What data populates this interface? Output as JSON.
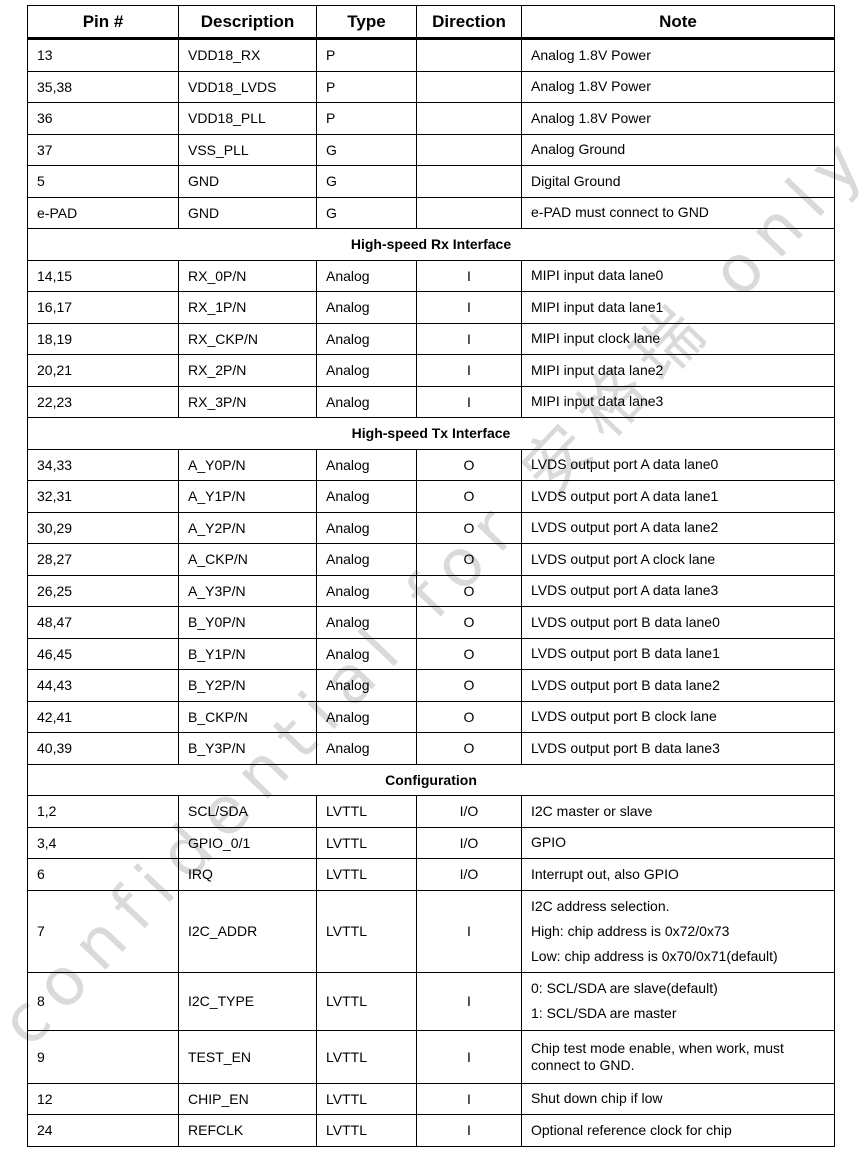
{
  "headers": [
    "Pin #",
    "Description",
    "Type",
    "Direction",
    "Note"
  ],
  "rows": [
    {
      "pin": "13",
      "desc": "VDD18_RX",
      "type": "P",
      "dir": "",
      "note": [
        "Analog 1.8V Power"
      ]
    },
    {
      "pin": "35,38",
      "desc": "VDD18_LVDS",
      "type": "P",
      "dir": "",
      "note": [
        "Analog 1.8V Power"
      ]
    },
    {
      "pin": "36",
      "desc": "VDD18_PLL",
      "type": "P",
      "dir": "",
      "note": [
        "Analog 1.8V Power"
      ]
    },
    {
      "pin": "37",
      "desc": "VSS_PLL",
      "type": "G",
      "dir": "",
      "note": [
        "Analog Ground"
      ]
    },
    {
      "pin": "5",
      "desc": "GND",
      "type": "G",
      "dir": "",
      "note": [
        "Digital Ground"
      ]
    },
    {
      "pin": "e-PAD",
      "desc": "GND",
      "type": "G",
      "dir": "",
      "note": [
        "e-PAD must connect to GND"
      ]
    },
    {
      "section": "High-speed Rx Interface"
    },
    {
      "pin": "14,15",
      "desc": "RX_0P/N",
      "type": "Analog",
      "dir": "I",
      "note": [
        "MIPI input data lane0"
      ]
    },
    {
      "pin": "16,17",
      "desc": "RX_1P/N",
      "type": "Analog",
      "dir": "I",
      "note": [
        "MIPI input data lane1"
      ]
    },
    {
      "pin": "18,19",
      "desc": "RX_CKP/N",
      "type": "Analog",
      "dir": "I",
      "note": [
        "MIPI input clock lane"
      ]
    },
    {
      "pin": "20,21",
      "desc": "RX_2P/N",
      "type": "Analog",
      "dir": "I",
      "note": [
        "MIPI input data lane2"
      ]
    },
    {
      "pin": "22,23",
      "desc": "RX_3P/N",
      "type": "Analog",
      "dir": "I",
      "note": [
        "MIPI input data lane3"
      ]
    },
    {
      "section": "High-speed Tx Interface"
    },
    {
      "pin": "34,33",
      "desc": "A_Y0P/N",
      "type": "Analog",
      "dir": "O",
      "note": [
        "LVDS output port A data lane0"
      ]
    },
    {
      "pin": "32,31",
      "desc": "A_Y1P/N",
      "type": "Analog",
      "dir": "O",
      "note": [
        "LVDS output port A data lane1"
      ]
    },
    {
      "pin": "30,29",
      "desc": "A_Y2P/N",
      "type": "Analog",
      "dir": "O",
      "note": [
        "LVDS output port A data lane2"
      ]
    },
    {
      "pin": "28,27",
      "desc": "A_CKP/N",
      "type": "Analog",
      "dir": "O",
      "note": [
        "LVDS output port A clock lane"
      ]
    },
    {
      "pin": "26,25",
      "desc": "A_Y3P/N",
      "type": "Analog",
      "dir": "O",
      "note": [
        "LVDS output port A data lane3"
      ]
    },
    {
      "pin": "48,47",
      "desc": "B_Y0P/N",
      "type": "Analog",
      "dir": "O",
      "note": [
        "LVDS output port B data lane0"
      ]
    },
    {
      "pin": "46,45",
      "desc": "B_Y1P/N",
      "type": "Analog",
      "dir": "O",
      "note": [
        "LVDS output port B data lane1"
      ]
    },
    {
      "pin": "44,43",
      "desc": "B_Y2P/N",
      "type": "Analog",
      "dir": "O",
      "note": [
        "LVDS output port B data lane2"
      ]
    },
    {
      "pin": "42,41",
      "desc": "B_CKP/N",
      "type": "Analog",
      "dir": "O",
      "note": [
        "LVDS output port B clock lane"
      ]
    },
    {
      "pin": "40,39",
      "desc": "B_Y3P/N",
      "type": "Analog",
      "dir": "O",
      "note": [
        "LVDS output port B data lane3"
      ]
    },
    {
      "section": "Configuration"
    },
    {
      "pin": "1,2",
      "desc": "SCL/SDA",
      "type": "LVTTL",
      "dir": "I/O",
      "note": [
        "I2C master or slave"
      ]
    },
    {
      "pin": "3,4",
      "desc": "GPIO_0/1",
      "type": "LVTTL",
      "dir": "I/O",
      "note": [
        "GPIO"
      ]
    },
    {
      "pin": "6",
      "desc": "IRQ",
      "type": "LVTTL",
      "dir": "I/O",
      "note": [
        "Interrupt out, also GPIO"
      ]
    },
    {
      "pin": "7",
      "desc": "I2C_ADDR",
      "type": "LVTTL",
      "dir": "I",
      "note": [
        "I2C address selection.",
        "High: chip address is 0x72/0x73",
        "Low: chip address is 0x70/0x71(default)"
      ]
    },
    {
      "pin": "8",
      "desc": "I2C_TYPE",
      "type": "LVTTL",
      "dir": "I",
      "note": [
        "0: SCL/SDA are slave(default)",
        "1: SCL/SDA are master"
      ]
    },
    {
      "pin": "9",
      "desc": "TEST_EN",
      "type": "LVTTL",
      "dir": "I",
      "note": [
        "Chip test mode enable, when work, must connect to GND."
      ]
    },
    {
      "pin": "12",
      "desc": "CHIP_EN",
      "type": "LVTTL",
      "dir": "I",
      "note": [
        "Shut down chip if low"
      ]
    },
    {
      "pin": "24",
      "desc": "REFCLK",
      "type": "LVTTL",
      "dir": "I",
      "note": [
        "Optional reference clock for chip"
      ]
    }
  ],
  "watermark": "confidential for 安格瑞 only"
}
